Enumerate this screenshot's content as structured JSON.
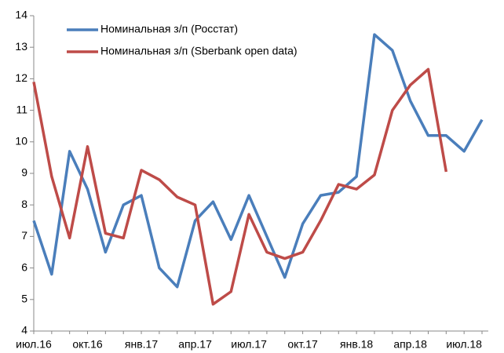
{
  "chart_data": {
    "type": "line",
    "categories": [
      "июл.16",
      null,
      null,
      "окт.16",
      null,
      null,
      "янв.17",
      null,
      null,
      "апр.17",
      null,
      null,
      "июл.17",
      null,
      null,
      "окт.17",
      null,
      null,
      "янв.18",
      null,
      null,
      "апр.18",
      null,
      null,
      "июл.18",
      null
    ],
    "series": [
      {
        "name": "Номинальная з/п (Росстат)",
        "color": "#4a7ebb",
        "values": [
          7.5,
          5.8,
          9.7,
          8.5,
          6.5,
          8.0,
          8.3,
          6.0,
          5.4,
          7.5,
          8.1,
          6.9,
          8.3,
          7.0,
          5.7,
          7.4,
          8.3,
          8.4,
          8.9,
          13.4,
          12.9,
          11.3,
          10.2,
          10.2,
          9.7,
          10.7
        ]
      },
      {
        "name": "Номинальная з/п (Sberbank open data)",
        "color": "#be4b48",
        "values": [
          11.9,
          8.9,
          6.95,
          9.85,
          7.1,
          6.95,
          9.1,
          8.8,
          8.25,
          8.0,
          4.85,
          5.25,
          7.7,
          6.5,
          6.3,
          6.5,
          7.5,
          8.65,
          8.5,
          8.95,
          11.0,
          11.8,
          12.3,
          9.05,
          null,
          null
        ]
      }
    ],
    "ylim": [
      4,
      14
    ],
    "yticks": [
      4,
      5,
      6,
      7,
      8,
      9,
      10,
      11,
      12,
      13,
      14
    ],
    "grid": false,
    "legend": "top-left"
  }
}
